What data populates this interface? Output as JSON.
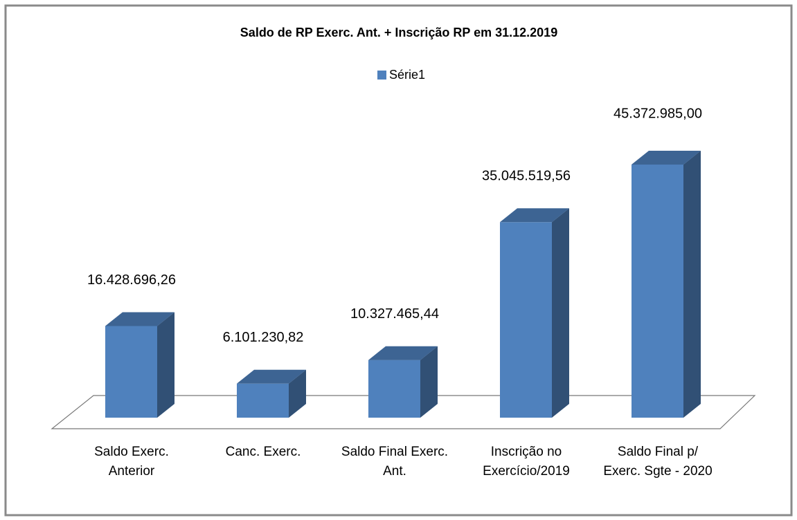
{
  "chart_data": {
    "type": "bar3d",
    "title": "Saldo de RP Exerc. Ant. + Inscrição RP em 31.12.2019",
    "categories": [
      "Saldo Exerc. Anterior",
      "Canc. Exerc.",
      "Saldo Final Exerc. Ant.",
      "Inscrição no Exercício/2019",
      "Saldo Final p/ Exerc. Sgte - 2020"
    ],
    "series": [
      {
        "name": "Série1",
        "color": "#4f81bd",
        "values": [
          16428696.26,
          6101230.82,
          10327465.44,
          35045519.56,
          45372985.0
        ],
        "value_labels": [
          "16.428.696,26",
          "6.101.230,82",
          "10.327.465,44",
          "35.045.519,56",
          "45.372.985,00"
        ]
      }
    ],
    "legend": "top"
  }
}
